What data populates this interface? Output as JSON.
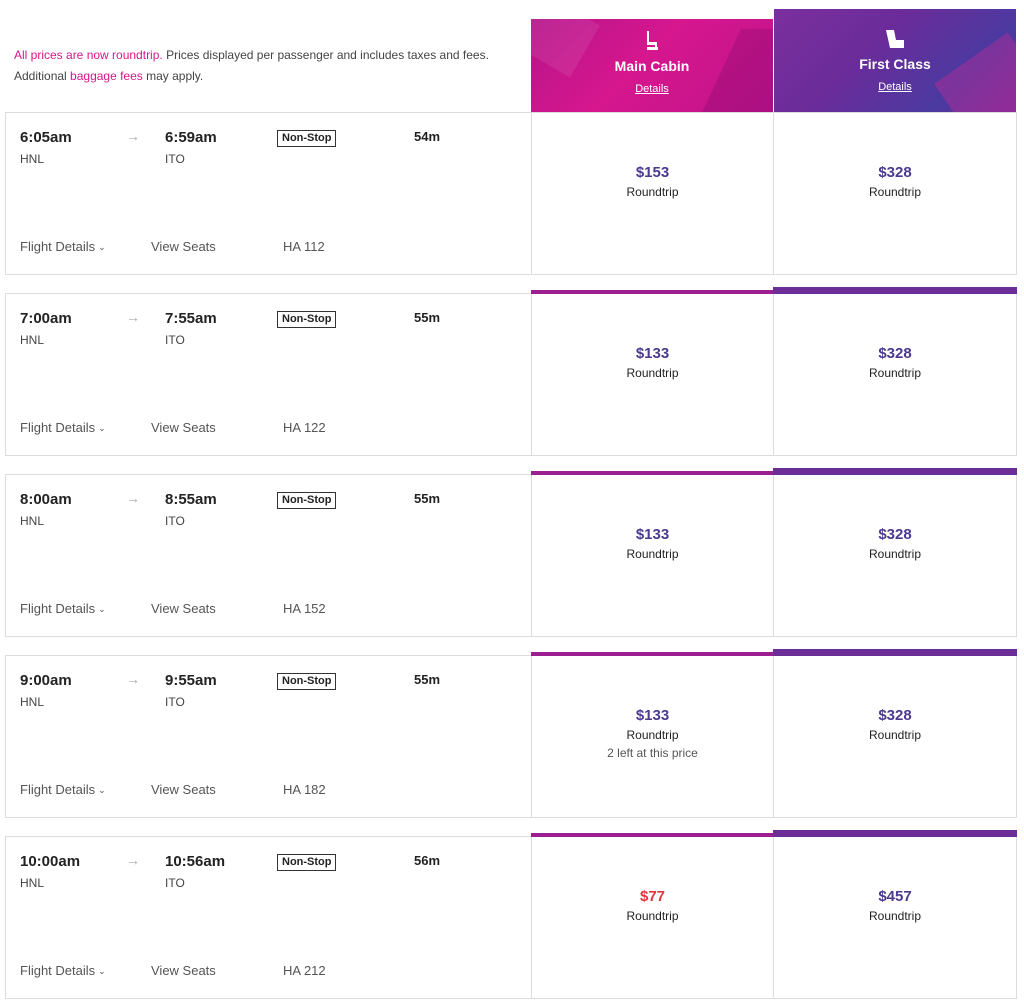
{
  "notice": {
    "roundtrip_link": "All prices are now roundtrip.",
    "text1": " Prices displayed per passenger and includes taxes and fees.",
    "text2": "Additional ",
    "baggage_link": "baggage fees",
    "text3": " may apply."
  },
  "cabins": {
    "main": {
      "name": "Main Cabin",
      "details": "Details",
      "icon": "seat-icon"
    },
    "first": {
      "name": "First Class",
      "details": "Details",
      "icon": "recliner-seat-icon"
    }
  },
  "colors": {
    "main_accent": "#d6178e",
    "first_accent": "#6b2d96",
    "price": "#4b3a8e",
    "sale_price": "#e0353b",
    "link_pink": "#d9168c"
  },
  "labels": {
    "flight_details": "Flight Details",
    "view_seats": "View Seats",
    "chevron_icon": "chevron-down-icon",
    "arrow_icon": "arrow-right-icon"
  },
  "flights": [
    {
      "depart": "6:05am",
      "arrive": "6:59am",
      "origin": "HNL",
      "dest": "ITO",
      "stops": "Non-Stop",
      "duration": "54m",
      "flight_number": "HA 112",
      "main_price": "$153",
      "main_label": "Roundtrip",
      "main_note": "",
      "first_price": "$328",
      "first_label": "Roundtrip"
    },
    {
      "depart": "7:00am",
      "arrive": "7:55am",
      "origin": "HNL",
      "dest": "ITO",
      "stops": "Non-Stop",
      "duration": "55m",
      "flight_number": "HA 122",
      "main_price": "$133",
      "main_label": "Roundtrip",
      "main_note": "",
      "first_price": "$328",
      "first_label": "Roundtrip"
    },
    {
      "depart": "8:00am",
      "arrive": "8:55am",
      "origin": "HNL",
      "dest": "ITO",
      "stops": "Non-Stop",
      "duration": "55m",
      "flight_number": "HA 152",
      "main_price": "$133",
      "main_label": "Roundtrip",
      "main_note": "",
      "first_price": "$328",
      "first_label": "Roundtrip"
    },
    {
      "depart": "9:00am",
      "arrive": "9:55am",
      "origin": "HNL",
      "dest": "ITO",
      "stops": "Non-Stop",
      "duration": "55m",
      "flight_number": "HA 182",
      "main_price": "$133",
      "main_label": "Roundtrip",
      "main_note": "2 left at this price",
      "first_price": "$328",
      "first_label": "Roundtrip"
    },
    {
      "depart": "10:00am",
      "arrive": "10:56am",
      "origin": "HNL",
      "dest": "ITO",
      "stops": "Non-Stop",
      "duration": "56m",
      "flight_number": "HA 212",
      "main_price": "$77",
      "main_label": "Roundtrip",
      "main_note": "",
      "first_price": "$457",
      "first_label": "Roundtrip"
    }
  ]
}
